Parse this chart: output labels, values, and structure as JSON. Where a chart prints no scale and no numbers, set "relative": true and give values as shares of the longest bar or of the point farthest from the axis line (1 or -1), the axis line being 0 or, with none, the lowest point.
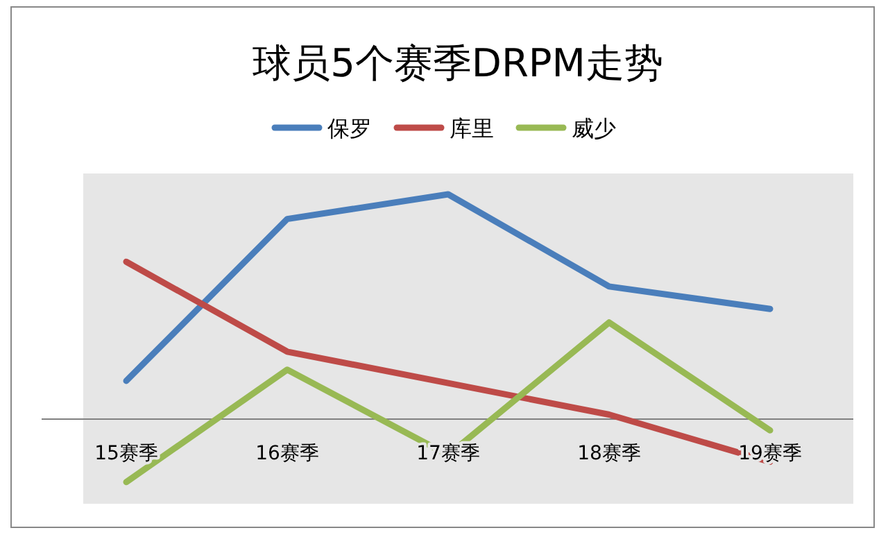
{
  "chart_data": {
    "type": "line",
    "title": "球员5个赛季DRPM走势",
    "relative": true,
    "legend": "top",
    "categories": [
      "15赛季",
      "16赛季",
      "17赛季",
      "18赛季",
      "19赛季"
    ],
    "series": [
      {
        "name": "保罗",
        "color": "#4a7ebb",
        "values": [
          0.17,
          0.89,
          1,
          0.59,
          0.49
        ]
      },
      {
        "name": "库里",
        "color": "#be4b48",
        "values": [
          0.7,
          0.3,
          0.16,
          0.02,
          -0.19
        ]
      },
      {
        "name": "威少",
        "color": "#98b954",
        "values": [
          -0.28,
          0.22,
          -0.16,
          0.43,
          -0.05
        ]
      }
    ]
  }
}
